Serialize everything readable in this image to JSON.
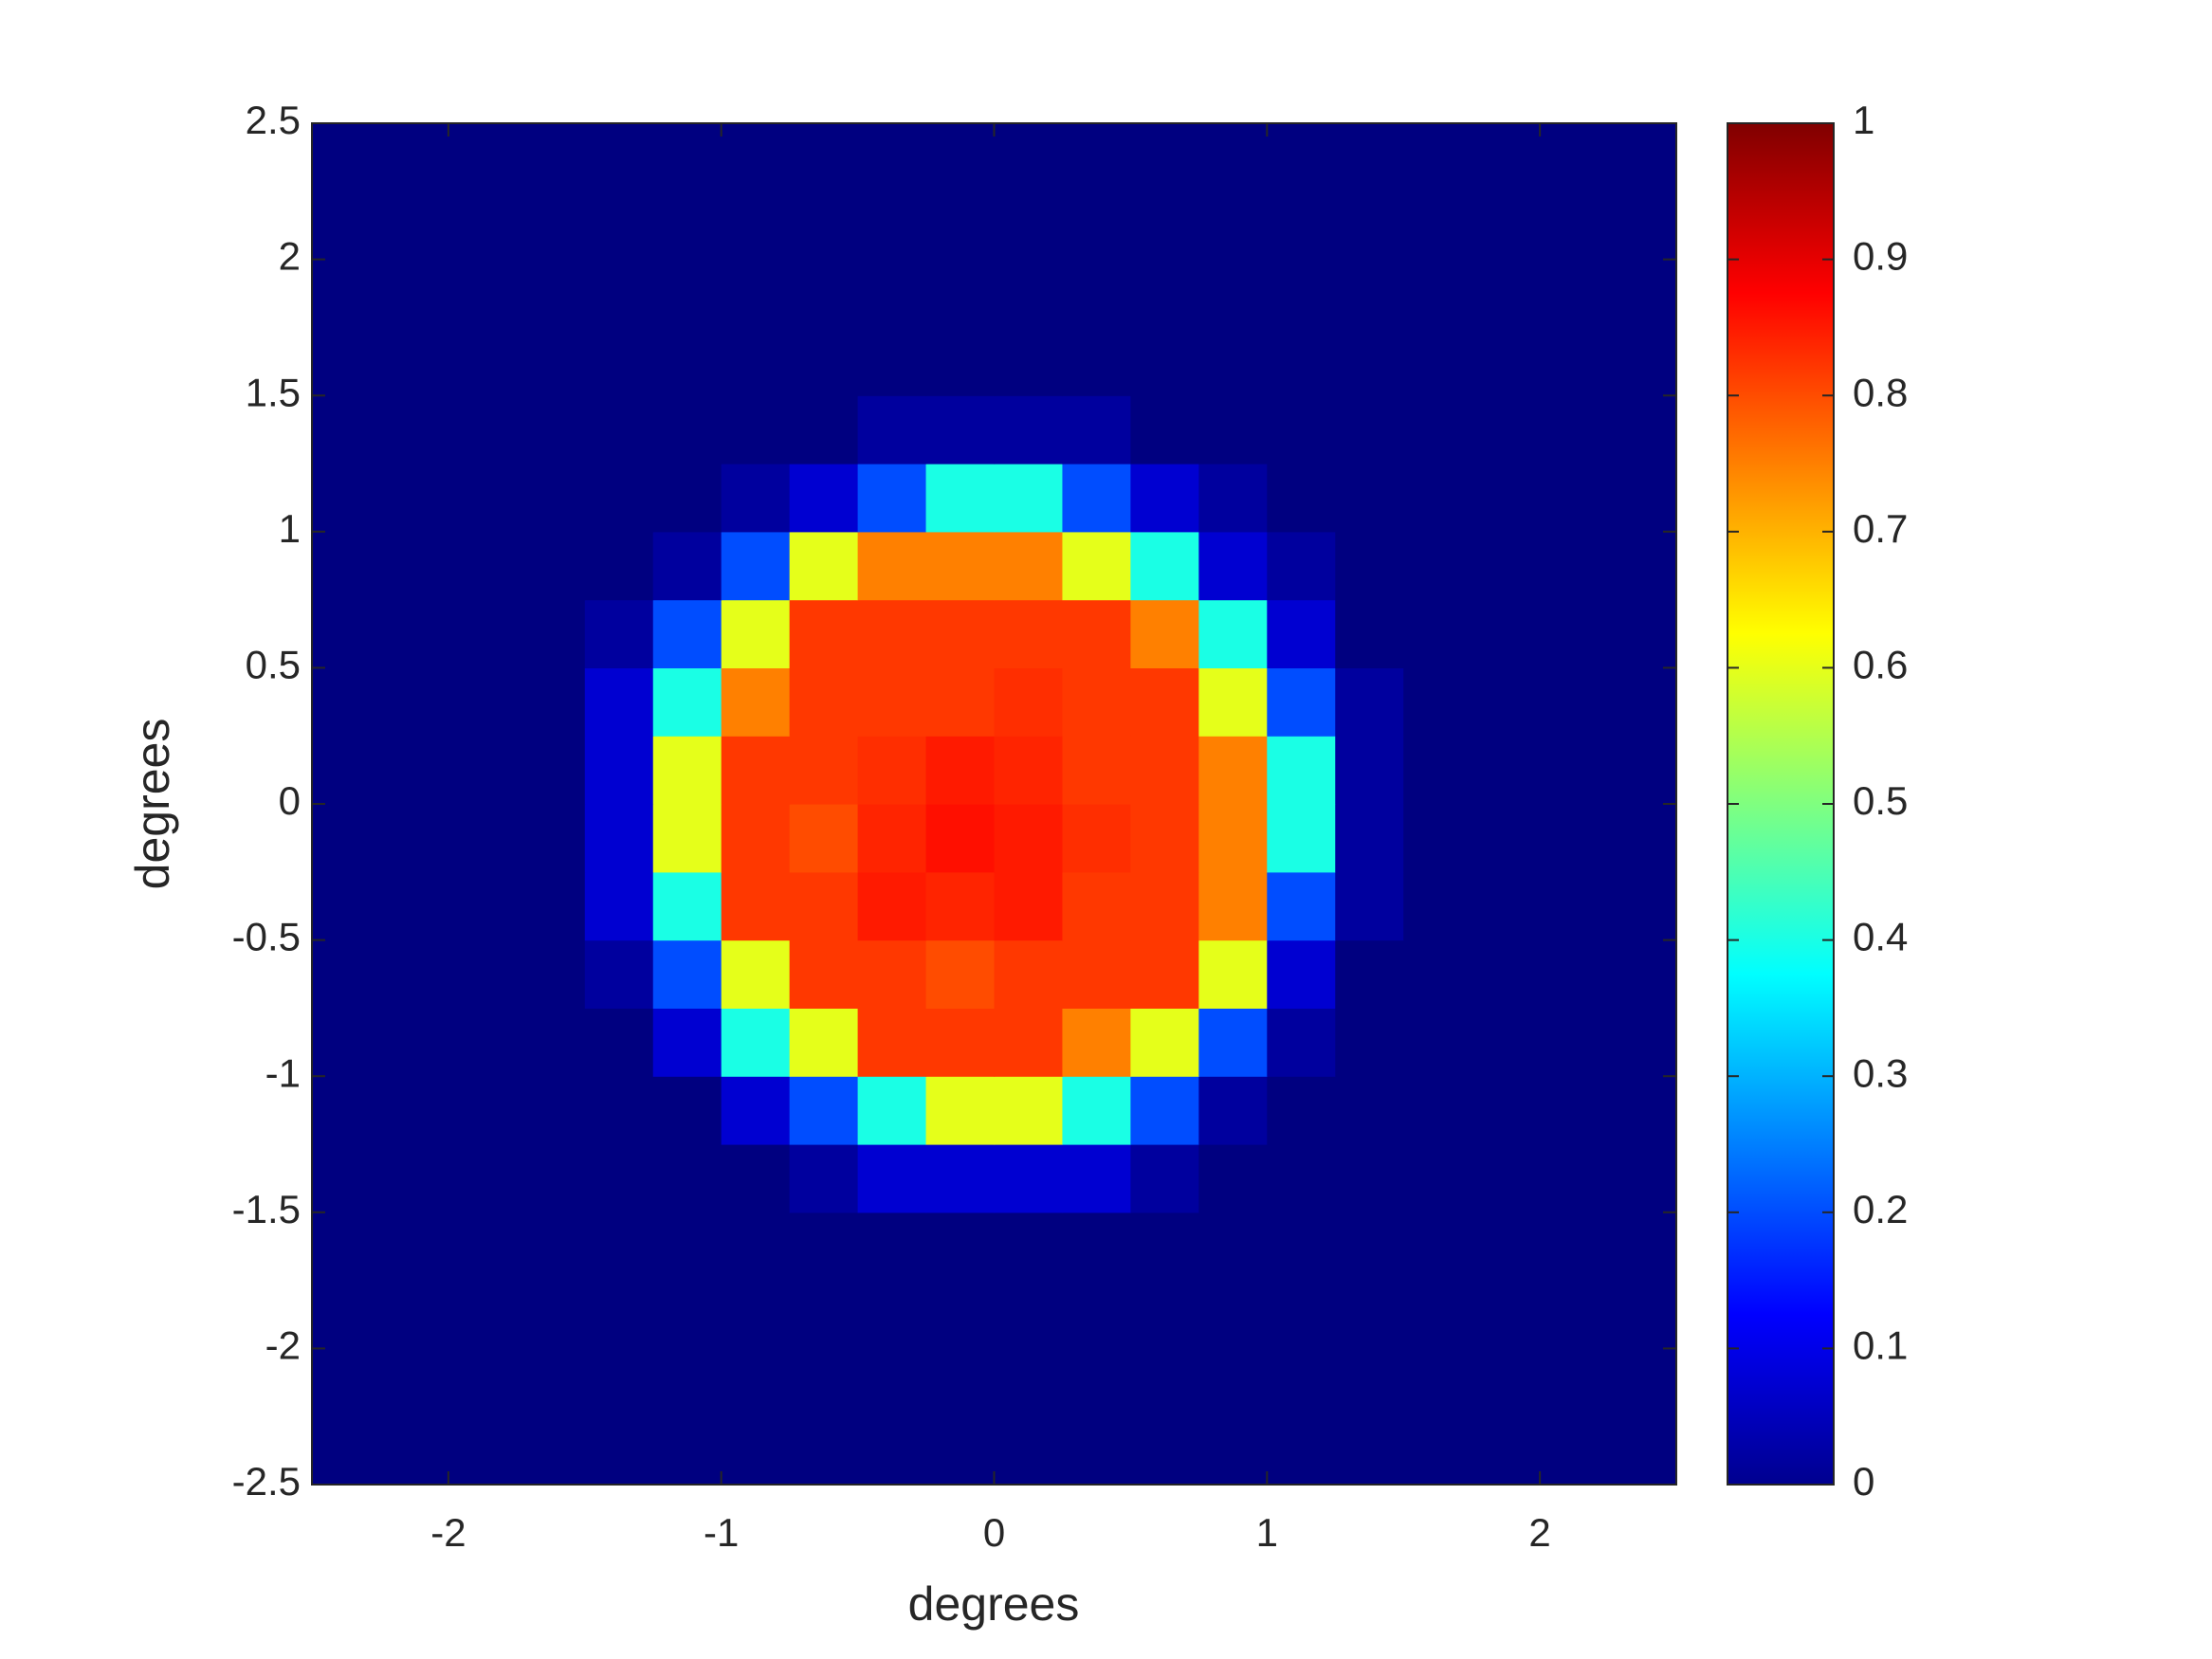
{
  "chart_data": {
    "type": "heatmap",
    "xlabel": "degrees",
    "ylabel": "degrees",
    "xlim": [
      -2.5,
      2.5
    ],
    "ylim": [
      -2.5,
      2.5
    ],
    "xticks": [
      -2,
      -1,
      0,
      1,
      2
    ],
    "yticks": [
      -2.5,
      -2,
      -1.5,
      -1,
      -0.5,
      0,
      0.5,
      1,
      1.5,
      2,
      2.5
    ],
    "colormap": "jet",
    "clim": [
      0,
      1
    ],
    "cticks": [
      0,
      0.1,
      0.2,
      0.3,
      0.4,
      0.5,
      0.6,
      0.7,
      0.8,
      0.9,
      1
    ],
    "x": [
      -2.375,
      -2.125,
      -1.875,
      -1.625,
      -1.375,
      -1.125,
      -0.875,
      -0.625,
      -0.375,
      -0.125,
      0.125,
      0.375,
      0.625,
      0.875,
      1.125,
      1.375,
      1.625,
      1.875,
      2.125,
      2.375
    ],
    "y": [
      -2.375,
      -2.125,
      -1.875,
      -1.625,
      -1.375,
      -1.125,
      -0.875,
      -0.625,
      -0.375,
      -0.125,
      0.125,
      0.375,
      0.625,
      0.875,
      1.125,
      1.375,
      1.625,
      1.875,
      2.125,
      2.375
    ],
    "z": [
      [
        0,
        0,
        0,
        0,
        0,
        0,
        0,
        0,
        0,
        0,
        0,
        0,
        0,
        0,
        0,
        0,
        0,
        0,
        0,
        0
      ],
      [
        0,
        0,
        0,
        0,
        0,
        0,
        0,
        0,
        0,
        0,
        0,
        0,
        0,
        0,
        0,
        0,
        0,
        0,
        0,
        0
      ],
      [
        0,
        0,
        0,
        0,
        0,
        0,
        0,
        0,
        0,
        0,
        0,
        0,
        0,
        0,
        0,
        0,
        0,
        0,
        0,
        0
      ],
      [
        0,
        0,
        0,
        0,
        0,
        0,
        0,
        0,
        0,
        0,
        0,
        0,
        0,
        0,
        0,
        0,
        0,
        0,
        0,
        0
      ],
      [
        0,
        0,
        0,
        0,
        0,
        0,
        0,
        0.03,
        0.08,
        0.08,
        0.08,
        0.08,
        0.03,
        0,
        0,
        0,
        0,
        0,
        0,
        0
      ],
      [
        0,
        0,
        0,
        0,
        0,
        0,
        0.08,
        0.2,
        0.4,
        0.6,
        0.6,
        0.4,
        0.2,
        0.03,
        0,
        0,
        0,
        0,
        0,
        0
      ],
      [
        0,
        0,
        0,
        0,
        0,
        0.08,
        0.4,
        0.6,
        0.82,
        0.82,
        0.82,
        0.75,
        0.6,
        0.2,
        0.03,
        0,
        0,
        0,
        0,
        0
      ],
      [
        0,
        0,
        0,
        0,
        0.03,
        0.2,
        0.6,
        0.82,
        0.82,
        0.8,
        0.82,
        0.82,
        0.82,
        0.6,
        0.08,
        0,
        0,
        0,
        0,
        0
      ],
      [
        0,
        0,
        0,
        0,
        0.08,
        0.4,
        0.82,
        0.82,
        0.85,
        0.84,
        0.85,
        0.82,
        0.82,
        0.75,
        0.2,
        0.03,
        0,
        0,
        0,
        0
      ],
      [
        0,
        0,
        0,
        0,
        0.08,
        0.6,
        0.82,
        0.8,
        0.84,
        0.86,
        0.85,
        0.83,
        0.82,
        0.75,
        0.4,
        0.03,
        0,
        0,
        0,
        0
      ],
      [
        0,
        0,
        0,
        0,
        0.08,
        0.6,
        0.82,
        0.82,
        0.83,
        0.85,
        0.84,
        0.82,
        0.82,
        0.75,
        0.4,
        0.03,
        0,
        0,
        0,
        0
      ],
      [
        0,
        0,
        0,
        0,
        0.08,
        0.4,
        0.75,
        0.82,
        0.82,
        0.82,
        0.83,
        0.82,
        0.82,
        0.6,
        0.2,
        0.03,
        0,
        0,
        0,
        0
      ],
      [
        0,
        0,
        0,
        0,
        0.03,
        0.2,
        0.6,
        0.82,
        0.82,
        0.82,
        0.82,
        0.82,
        0.75,
        0.4,
        0.08,
        0,
        0,
        0,
        0,
        0
      ],
      [
        0,
        0,
        0,
        0,
        0,
        0.03,
        0.2,
        0.6,
        0.75,
        0.75,
        0.75,
        0.6,
        0.4,
        0.08,
        0.03,
        0,
        0,
        0,
        0,
        0
      ],
      [
        0,
        0,
        0,
        0,
        0,
        0,
        0.03,
        0.08,
        0.2,
        0.4,
        0.4,
        0.2,
        0.08,
        0.03,
        0,
        0,
        0,
        0,
        0,
        0
      ],
      [
        0,
        0,
        0,
        0,
        0,
        0,
        0,
        0,
        0.03,
        0.03,
        0.03,
        0.03,
        0,
        0,
        0,
        0,
        0,
        0,
        0,
        0
      ],
      [
        0,
        0,
        0,
        0,
        0,
        0,
        0,
        0,
        0,
        0,
        0,
        0,
        0,
        0,
        0,
        0,
        0,
        0,
        0,
        0
      ],
      [
        0,
        0,
        0,
        0,
        0,
        0,
        0,
        0,
        0,
        0,
        0,
        0,
        0,
        0,
        0,
        0,
        0,
        0,
        0,
        0
      ],
      [
        0,
        0,
        0,
        0,
        0,
        0,
        0,
        0,
        0,
        0,
        0,
        0,
        0,
        0,
        0,
        0,
        0,
        0,
        0,
        0
      ],
      [
        0,
        0,
        0,
        0,
        0,
        0,
        0,
        0,
        0,
        0,
        0,
        0,
        0,
        0,
        0,
        0,
        0,
        0,
        0,
        0
      ]
    ]
  }
}
